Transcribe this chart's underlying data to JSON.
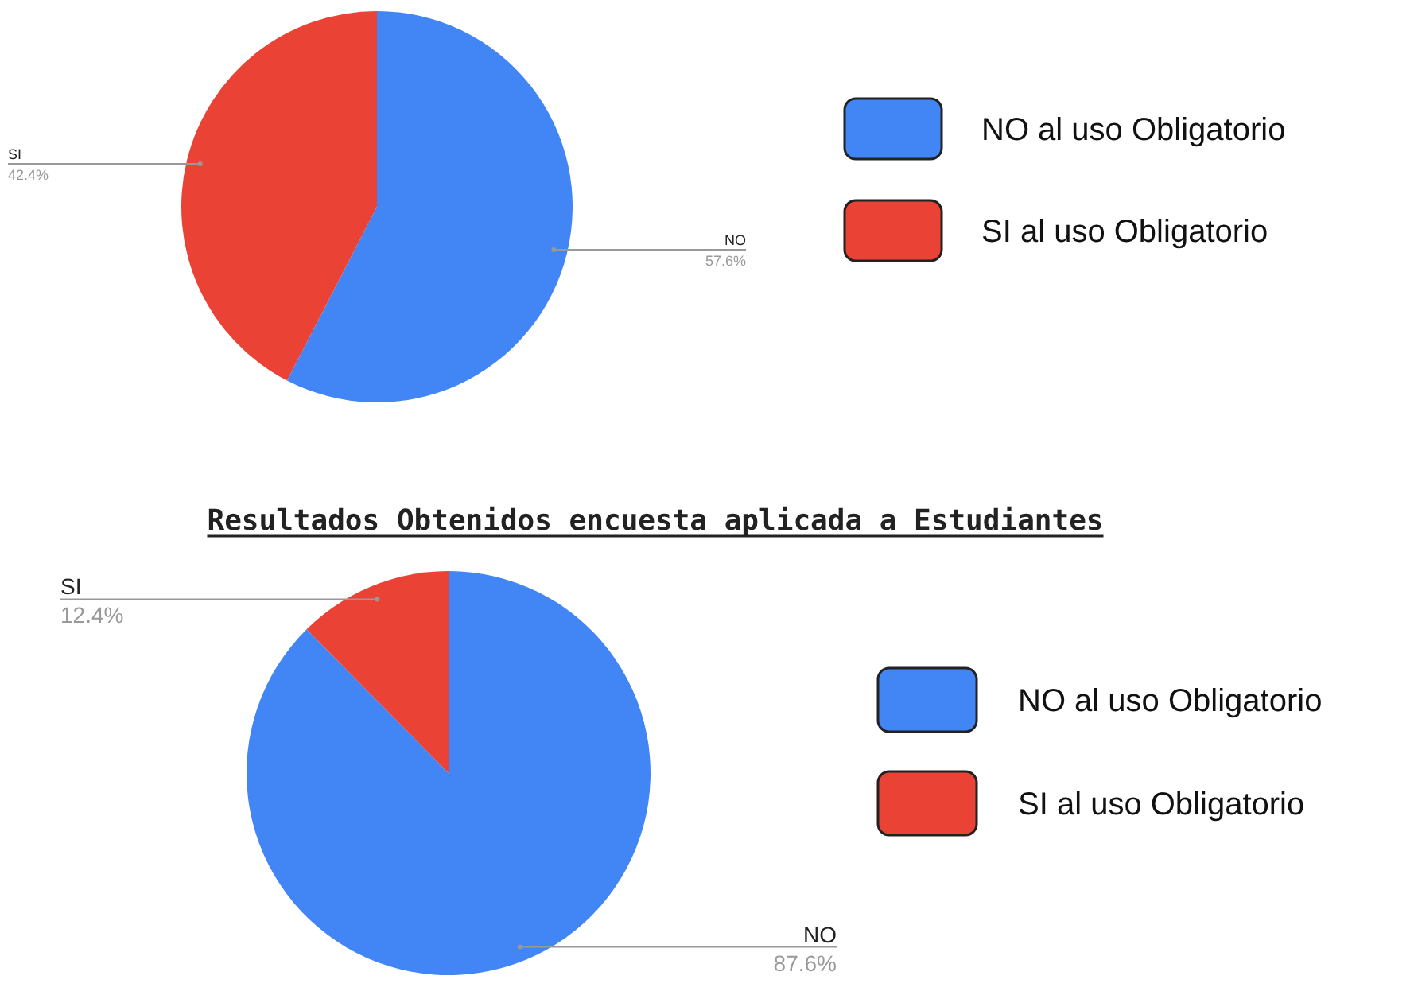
{
  "chart_data": [
    {
      "type": "pie",
      "categories": [
        "NO",
        "SI"
      ],
      "values": [
        57.6,
        42.4
      ],
      "value_labels": [
        "57.6%",
        "42.4%"
      ],
      "colors": [
        "#4285f4",
        "#ea4335"
      ],
      "annotations": [
        "NO al uso Obligatorio",
        "SI al uso Obligatorio"
      ]
    },
    {
      "type": "pie",
      "title": "Resultados Obtenidos encuesta aplicada a Estudiantes",
      "categories": [
        "NO",
        "SI"
      ],
      "values": [
        87.6,
        12.4
      ],
      "value_labels": [
        "87.6%",
        "12.4%"
      ],
      "colors": [
        "#4285f4",
        "#ea4335"
      ],
      "annotations": [
        "NO al uso Obligatorio",
        "SI al uso Obligatorio"
      ]
    }
  ]
}
